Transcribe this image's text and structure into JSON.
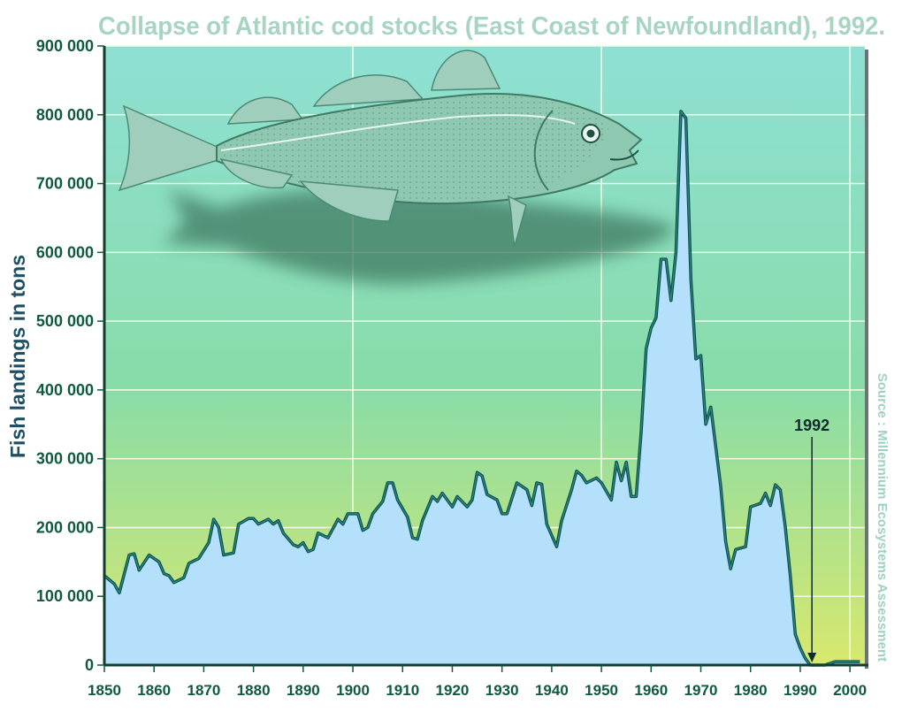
{
  "colors": {
    "area_fill": "#b5e0fb",
    "area_stroke": "#0b4f4a",
    "bg_top": "#8ee0d4",
    "bg_mid": "#88dca8",
    "bg_bottom": "#d8e86e",
    "fish_body": "#8ec8b0",
    "fish_shadow": "#3f7a62",
    "tick_text": "#0e5a3c"
  },
  "chart_data": {
    "type": "area",
    "title": "Collapse of Atlantic cod stocks (East Coast of Newfoundland), 1992.",
    "ylabel": "Fish landings in tons",
    "xlabel": "",
    "source": "Source : Millennium Ecosystems Assessment",
    "xlim": [
      1850,
      2003
    ],
    "ylim": [
      0,
      900000
    ],
    "grid": true,
    "x_ticks": [
      {
        "value": 1850,
        "label": "1850"
      },
      {
        "value": 1860,
        "label": "1860"
      },
      {
        "value": 1870,
        "label": "1870"
      },
      {
        "value": 1880,
        "label": "1880"
      },
      {
        "value": 1890,
        "label": "1890"
      },
      {
        "value": 1900,
        "label": "1900"
      },
      {
        "value": 1910,
        "label": "1910"
      },
      {
        "value": 1920,
        "label": "1920"
      },
      {
        "value": 1930,
        "label": "1930"
      },
      {
        "value": 1940,
        "label": "1940"
      },
      {
        "value": 1950,
        "label": "1950"
      },
      {
        "value": 1960,
        "label": "1960"
      },
      {
        "value": 1970,
        "label": "1970"
      },
      {
        "value": 1980,
        "label": "1980"
      },
      {
        "value": 1990,
        "label": "1990"
      },
      {
        "value": 2000,
        "label": "2000"
      }
    ],
    "y_ticks": [
      {
        "value": 0,
        "label": "0"
      },
      {
        "value": 100000,
        "label": "100 000"
      },
      {
        "value": 200000,
        "label": "200 000"
      },
      {
        "value": 300000,
        "label": "300 000"
      },
      {
        "value": 400000,
        "label": "400 000"
      },
      {
        "value": 500000,
        "label": "500 000"
      },
      {
        "value": 600000,
        "label": "600 000"
      },
      {
        "value": 700000,
        "label": "700 000"
      },
      {
        "value": 800000,
        "label": "800 000"
      },
      {
        "value": 900000,
        "label": "900 000"
      }
    ],
    "series": [
      {
        "values": [
          [
            1850,
            130000
          ],
          [
            1852,
            118000
          ],
          [
            1853,
            105000
          ],
          [
            1855,
            160000
          ],
          [
            1856,
            162000
          ],
          [
            1857,
            138000
          ],
          [
            1859,
            160000
          ],
          [
            1861,
            150000
          ],
          [
            1862,
            133000
          ],
          [
            1863,
            130000
          ],
          [
            1864,
            120000
          ],
          [
            1866,
            127000
          ],
          [
            1867,
            148000
          ],
          [
            1869,
            155000
          ],
          [
            1871,
            178000
          ],
          [
            1872,
            212000
          ],
          [
            1873,
            200000
          ],
          [
            1874,
            160000
          ],
          [
            1876,
            163000
          ],
          [
            1877,
            205000
          ],
          [
            1879,
            213000
          ],
          [
            1880,
            213000
          ],
          [
            1881,
            205000
          ],
          [
            1883,
            212000
          ],
          [
            1884,
            205000
          ],
          [
            1885,
            210000
          ],
          [
            1886,
            192000
          ],
          [
            1888,
            175000
          ],
          [
            1889,
            172000
          ],
          [
            1890,
            178000
          ],
          [
            1891,
            165000
          ],
          [
            1892,
            168000
          ],
          [
            1893,
            192000
          ],
          [
            1895,
            185000
          ],
          [
            1897,
            212000
          ],
          [
            1898,
            205000
          ],
          [
            1899,
            220000
          ],
          [
            1901,
            220000
          ],
          [
            1902,
            196000
          ],
          [
            1903,
            200000
          ],
          [
            1904,
            220000
          ],
          [
            1906,
            238000
          ],
          [
            1907,
            265000
          ],
          [
            1908,
            265000
          ],
          [
            1909,
            240000
          ],
          [
            1911,
            215000
          ],
          [
            1912,
            185000
          ],
          [
            1913,
            183000
          ],
          [
            1914,
            210000
          ],
          [
            1916,
            245000
          ],
          [
            1917,
            238000
          ],
          [
            1918,
            250000
          ],
          [
            1920,
            230000
          ],
          [
            1921,
            245000
          ],
          [
            1923,
            230000
          ],
          [
            1924,
            240000
          ],
          [
            1925,
            280000
          ],
          [
            1926,
            275000
          ],
          [
            1927,
            248000
          ],
          [
            1929,
            240000
          ],
          [
            1930,
            220000
          ],
          [
            1931,
            220000
          ],
          [
            1933,
            265000
          ],
          [
            1935,
            255000
          ],
          [
            1936,
            232000
          ],
          [
            1937,
            265000
          ],
          [
            1938,
            263000
          ],
          [
            1939,
            205000
          ],
          [
            1941,
            172000
          ],
          [
            1942,
            210000
          ],
          [
            1944,
            255000
          ],
          [
            1945,
            282000
          ],
          [
            1946,
            276000
          ],
          [
            1947,
            265000
          ],
          [
            1949,
            272000
          ],
          [
            1950,
            265000
          ],
          [
            1952,
            240000
          ],
          [
            1953,
            295000
          ],
          [
            1954,
            268000
          ],
          [
            1955,
            295000
          ],
          [
            1956,
            245000
          ],
          [
            1957,
            245000
          ],
          [
            1958,
            340000
          ],
          [
            1959,
            460000
          ],
          [
            1960,
            490000
          ],
          [
            1961,
            505000
          ],
          [
            1962,
            590000
          ],
          [
            1963,
            590000
          ],
          [
            1964,
            530000
          ],
          [
            1965,
            600000
          ],
          [
            1966,
            805000
          ],
          [
            1967,
            795000
          ],
          [
            1968,
            560000
          ],
          [
            1969,
            445000
          ],
          [
            1970,
            450000
          ],
          [
            1971,
            350000
          ],
          [
            1972,
            375000
          ],
          [
            1974,
            260000
          ],
          [
            1975,
            180000
          ],
          [
            1976,
            140000
          ],
          [
            1977,
            168000
          ],
          [
            1979,
            172000
          ],
          [
            1980,
            230000
          ],
          [
            1982,
            235000
          ],
          [
            1983,
            250000
          ],
          [
            1984,
            232000
          ],
          [
            1985,
            262000
          ],
          [
            1986,
            255000
          ],
          [
            1987,
            200000
          ],
          [
            1988,
            130000
          ],
          [
            1989,
            45000
          ],
          [
            1990,
            25000
          ],
          [
            1991,
            10000
          ],
          [
            1992,
            0
          ],
          [
            1995,
            0
          ],
          [
            1997,
            5000
          ],
          [
            1999,
            5000
          ],
          [
            2002,
            5000
          ]
        ]
      }
    ],
    "annotations": [
      {
        "text": "1992",
        "x": 1992,
        "y": 0
      }
    ]
  }
}
